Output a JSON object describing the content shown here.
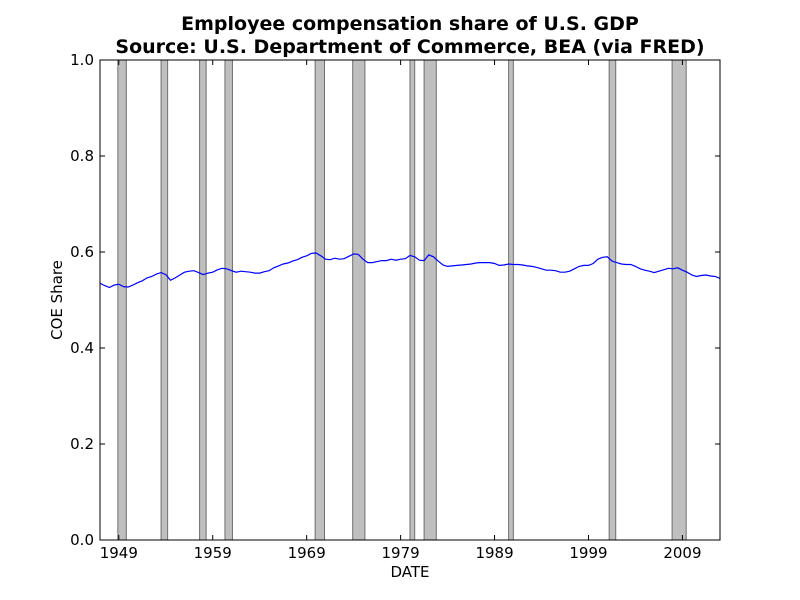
{
  "chart_data": {
    "type": "line",
    "title": "Employee compensation share of U.S. GDP",
    "subtitle": "Source: U.S. Department of Commerce, BEA (via FRED)",
    "xlabel": "DATE",
    "ylabel": "COE Share",
    "xlim": [
      1947.0,
      2013.0
    ],
    "ylim": [
      0.0,
      1.0
    ],
    "x_ticks": [
      1949,
      1959,
      1969,
      1979,
      1989,
      1999,
      2009
    ],
    "x_tick_labels": [
      "1949",
      "1959",
      "1969",
      "1979",
      "1989",
      "1999",
      "2009"
    ],
    "y_ticks": [
      0.0,
      0.2,
      0.4,
      0.6,
      0.8,
      1.0
    ],
    "y_tick_labels": [
      "0.0",
      "0.2",
      "0.4",
      "0.6",
      "0.8",
      "1.0"
    ],
    "grid": false,
    "recession_bands": [
      [
        1948.9,
        1949.8
      ],
      [
        1953.5,
        1954.2
      ],
      [
        1957.6,
        1958.3
      ],
      [
        1960.3,
        1961.1
      ],
      [
        1969.9,
        1970.9
      ],
      [
        1973.9,
        1975.2
      ],
      [
        1980.0,
        1980.5
      ],
      [
        1981.5,
        1982.8
      ],
      [
        1990.5,
        1991.0
      ],
      [
        2001.2,
        2001.9
      ],
      [
        2007.9,
        2009.4
      ]
    ],
    "series": [
      {
        "color": "#0000ff",
        "x": [
          1947.0,
          1947.5,
          1948.0,
          1948.5,
          1949.0,
          1949.5,
          1950.0,
          1950.5,
          1951.0,
          1951.5,
          1952.0,
          1952.5,
          1953.0,
          1953.5,
          1954.0,
          1954.5,
          1955.0,
          1955.5,
          1956.0,
          1956.5,
          1957.0,
          1957.5,
          1958.0,
          1958.5,
          1959.0,
          1959.5,
          1960.0,
          1960.5,
          1961.0,
          1961.5,
          1962.0,
          1962.5,
          1963.0,
          1963.5,
          1964.0,
          1964.5,
          1965.0,
          1965.5,
          1966.0,
          1966.5,
          1967.0,
          1967.5,
          1968.0,
          1968.5,
          1969.0,
          1969.5,
          1970.0,
          1970.5,
          1971.0,
          1971.5,
          1972.0,
          1972.5,
          1973.0,
          1973.5,
          1974.0,
          1974.5,
          1975.0,
          1975.5,
          1976.0,
          1976.5,
          1977.0,
          1977.5,
          1978.0,
          1978.5,
          1979.0,
          1979.5,
          1980.0,
          1980.5,
          1981.0,
          1981.5,
          1982.0,
          1982.5,
          1983.0,
          1983.5,
          1984.0,
          1984.5,
          1985.0,
          1985.5,
          1986.0,
          1986.5,
          1987.0,
          1987.5,
          1988.0,
          1988.5,
          1989.0,
          1989.5,
          1990.0,
          1990.5,
          1991.0,
          1991.5,
          1992.0,
          1992.5,
          1993.0,
          1993.5,
          1994.0,
          1994.5,
          1995.0,
          1995.5,
          1996.0,
          1996.5,
          1997.0,
          1997.5,
          1998.0,
          1998.5,
          1999.0,
          1999.5,
          2000.0,
          2000.5,
          2001.0,
          2001.5,
          2002.0,
          2002.5,
          2003.0,
          2003.5,
          2004.0,
          2004.5,
          2005.0,
          2005.5,
          2006.0,
          2006.5,
          2007.0,
          2007.5,
          2008.0,
          2008.5,
          2009.0,
          2009.5,
          2010.0,
          2010.5,
          2011.0,
          2011.5,
          2012.0,
          2012.5,
          2013.0
        ],
        "y": [
          0.535,
          0.53,
          0.526,
          0.531,
          0.533,
          0.528,
          0.527,
          0.531,
          0.536,
          0.54,
          0.546,
          0.549,
          0.554,
          0.557,
          0.553,
          0.541,
          0.546,
          0.552,
          0.558,
          0.56,
          0.561,
          0.557,
          0.553,
          0.556,
          0.558,
          0.563,
          0.566,
          0.565,
          0.561,
          0.558,
          0.56,
          0.559,
          0.558,
          0.556,
          0.556,
          0.559,
          0.561,
          0.567,
          0.571,
          0.575,
          0.577,
          0.581,
          0.584,
          0.589,
          0.592,
          0.597,
          0.598,
          0.592,
          0.585,
          0.584,
          0.587,
          0.585,
          0.586,
          0.591,
          0.596,
          0.595,
          0.585,
          0.578,
          0.578,
          0.58,
          0.582,
          0.582,
          0.585,
          0.583,
          0.585,
          0.586,
          0.593,
          0.59,
          0.583,
          0.582,
          0.594,
          0.59,
          0.581,
          0.573,
          0.57,
          0.571,
          0.572,
          0.573,
          0.574,
          0.575,
          0.577,
          0.578,
          0.578,
          0.578,
          0.576,
          0.572,
          0.573,
          0.575,
          0.574,
          0.574,
          0.573,
          0.571,
          0.57,
          0.568,
          0.565,
          0.562,
          0.562,
          0.561,
          0.558,
          0.558,
          0.56,
          0.565,
          0.57,
          0.572,
          0.572,
          0.576,
          0.585,
          0.589,
          0.59,
          0.581,
          0.578,
          0.575,
          0.574,
          0.574,
          0.57,
          0.565,
          0.562,
          0.56,
          0.557,
          0.56,
          0.563,
          0.566,
          0.565,
          0.567,
          0.562,
          0.558,
          0.552,
          0.549,
          0.551,
          0.552,
          0.55,
          0.549,
          0.545
        ]
      }
    ]
  }
}
